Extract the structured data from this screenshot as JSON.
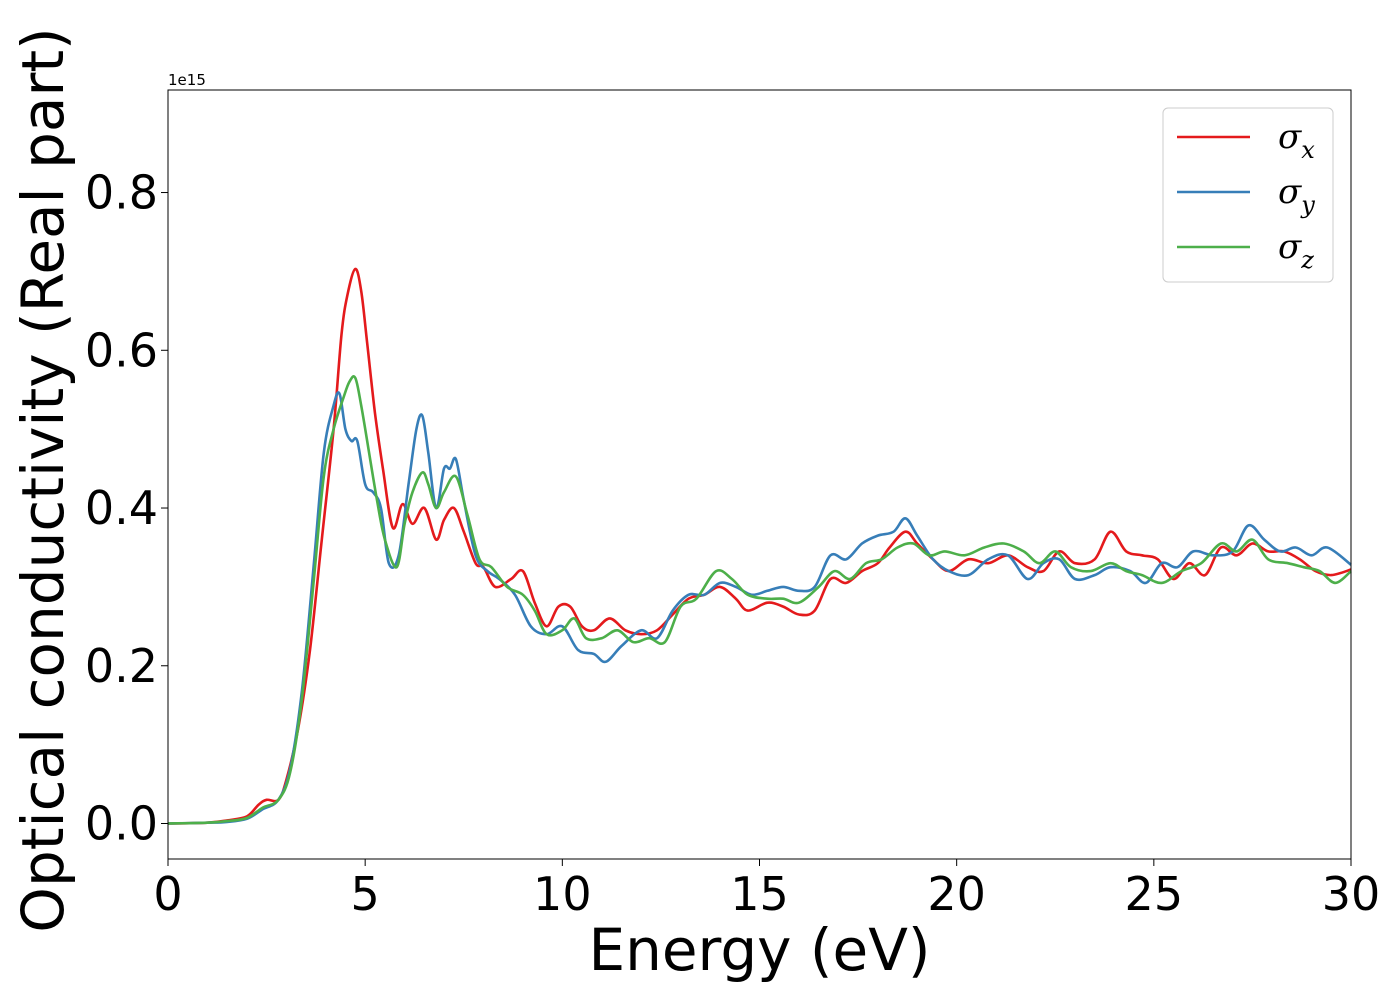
{
  "chart_data": {
    "type": "line",
    "xlabel": "Energy (eV)",
    "ylabel": "Optical conductivity (Real part)",
    "y_offset_text": "1e15",
    "xlim": [
      0,
      30
    ],
    "ylim": [
      -0.045,
      0.93
    ],
    "x_ticks": [
      "0",
      "5",
      "10",
      "15",
      "20",
      "25",
      "30"
    ],
    "y_ticks": [
      "0.0",
      "0.2",
      "0.4",
      "0.6",
      "0.8"
    ],
    "grid": false,
    "legend_position": "top-right",
    "series": [
      {
        "name": "σx",
        "legend_main": "σ",
        "legend_sub": "x",
        "color": "#e41a1c",
        "points": [
          [
            0,
            0
          ],
          [
            1,
            0.001
          ],
          [
            1.5,
            0.004
          ],
          [
            2,
            0.009
          ],
          [
            2.3,
            0.024
          ],
          [
            2.5,
            0.03
          ],
          [
            2.8,
            0.03
          ],
          [
            3,
            0.055
          ],
          [
            3.3,
            0.12
          ],
          [
            3.6,
            0.22
          ],
          [
            3.9,
            0.36
          ],
          [
            4.2,
            0.5
          ],
          [
            4.4,
            0.62
          ],
          [
            4.55,
            0.67
          ],
          [
            4.75,
            0.703
          ],
          [
            4.9,
            0.675
          ],
          [
            5.05,
            0.61
          ],
          [
            5.25,
            0.52
          ],
          [
            5.45,
            0.45
          ],
          [
            5.7,
            0.375
          ],
          [
            5.95,
            0.405
          ],
          [
            6.2,
            0.38
          ],
          [
            6.5,
            0.4
          ],
          [
            6.8,
            0.36
          ],
          [
            7.0,
            0.385
          ],
          [
            7.25,
            0.4
          ],
          [
            7.5,
            0.37
          ],
          [
            7.8,
            0.33
          ],
          [
            8.0,
            0.325
          ],
          [
            8.3,
            0.3
          ],
          [
            8.7,
            0.31
          ],
          [
            9.0,
            0.32
          ],
          [
            9.3,
            0.28
          ],
          [
            9.6,
            0.25
          ],
          [
            9.9,
            0.275
          ],
          [
            10.2,
            0.275
          ],
          [
            10.5,
            0.25
          ],
          [
            10.8,
            0.245
          ],
          [
            11.2,
            0.26
          ],
          [
            11.6,
            0.245
          ],
          [
            12,
            0.24
          ],
          [
            12.4,
            0.245
          ],
          [
            12.8,
            0.265
          ],
          [
            13.2,
            0.285
          ],
          [
            13.6,
            0.29
          ],
          [
            14,
            0.3
          ],
          [
            14.4,
            0.285
          ],
          [
            14.7,
            0.27
          ],
          [
            15.2,
            0.28
          ],
          [
            15.6,
            0.275
          ],
          [
            16,
            0.265
          ],
          [
            16.4,
            0.27
          ],
          [
            16.8,
            0.31
          ],
          [
            17.2,
            0.305
          ],
          [
            17.6,
            0.32
          ],
          [
            18,
            0.33
          ],
          [
            18.3,
            0.35
          ],
          [
            18.7,
            0.37
          ],
          [
            19,
            0.355
          ],
          [
            19.4,
            0.335
          ],
          [
            19.8,
            0.32
          ],
          [
            20.3,
            0.335
          ],
          [
            20.8,
            0.33
          ],
          [
            21.3,
            0.34
          ],
          [
            21.8,
            0.325
          ],
          [
            22.2,
            0.32
          ],
          [
            22.6,
            0.345
          ],
          [
            23,
            0.33
          ],
          [
            23.5,
            0.335
          ],
          [
            23.9,
            0.37
          ],
          [
            24.3,
            0.345
          ],
          [
            24.7,
            0.34
          ],
          [
            25.1,
            0.335
          ],
          [
            25.5,
            0.31
          ],
          [
            25.9,
            0.33
          ],
          [
            26.3,
            0.315
          ],
          [
            26.7,
            0.35
          ],
          [
            27.1,
            0.34
          ],
          [
            27.5,
            0.355
          ],
          [
            27.9,
            0.345
          ],
          [
            28.3,
            0.345
          ],
          [
            28.7,
            0.335
          ],
          [
            29.1,
            0.32
          ],
          [
            29.5,
            0.315
          ],
          [
            30,
            0.322
          ]
        ]
      },
      {
        "name": "σy",
        "legend_main": "σ",
        "legend_sub": "y",
        "color": "#377eb8",
        "points": [
          [
            0,
            0
          ],
          [
            1,
            0.001
          ],
          [
            1.5,
            0.002
          ],
          [
            2,
            0.006
          ],
          [
            2.4,
            0.018
          ],
          [
            2.8,
            0.03
          ],
          [
            3.1,
            0.07
          ],
          [
            3.4,
            0.17
          ],
          [
            3.7,
            0.33
          ],
          [
            3.95,
            0.47
          ],
          [
            4.2,
            0.53
          ],
          [
            4.35,
            0.545
          ],
          [
            4.5,
            0.5
          ],
          [
            4.65,
            0.485
          ],
          [
            4.8,
            0.485
          ],
          [
            5.0,
            0.43
          ],
          [
            5.2,
            0.42
          ],
          [
            5.4,
            0.4
          ],
          [
            5.6,
            0.33
          ],
          [
            5.85,
            0.34
          ],
          [
            6.1,
            0.43
          ],
          [
            6.3,
            0.5
          ],
          [
            6.45,
            0.517
          ],
          [
            6.6,
            0.47
          ],
          [
            6.8,
            0.4
          ],
          [
            7.0,
            0.45
          ],
          [
            7.15,
            0.45
          ],
          [
            7.3,
            0.462
          ],
          [
            7.5,
            0.41
          ],
          [
            7.8,
            0.34
          ],
          [
            8.1,
            0.32
          ],
          [
            8.4,
            0.31
          ],
          [
            8.8,
            0.29
          ],
          [
            9.2,
            0.25
          ],
          [
            9.6,
            0.24
          ],
          [
            10,
            0.25
          ],
          [
            10.4,
            0.22
          ],
          [
            10.8,
            0.215
          ],
          [
            11.1,
            0.205
          ],
          [
            11.5,
            0.225
          ],
          [
            12,
            0.245
          ],
          [
            12.4,
            0.235
          ],
          [
            12.8,
            0.27
          ],
          [
            13.2,
            0.29
          ],
          [
            13.6,
            0.29
          ],
          [
            14,
            0.305
          ],
          [
            14.4,
            0.3
          ],
          [
            14.8,
            0.29
          ],
          [
            15.2,
            0.295
          ],
          [
            15.6,
            0.3
          ],
          [
            16,
            0.295
          ],
          [
            16.4,
            0.3
          ],
          [
            16.8,
            0.34
          ],
          [
            17.2,
            0.335
          ],
          [
            17.6,
            0.355
          ],
          [
            18,
            0.365
          ],
          [
            18.4,
            0.37
          ],
          [
            18.7,
            0.387
          ],
          [
            19,
            0.365
          ],
          [
            19.4,
            0.335
          ],
          [
            19.8,
            0.32
          ],
          [
            20.3,
            0.315
          ],
          [
            20.8,
            0.335
          ],
          [
            21.3,
            0.34
          ],
          [
            21.8,
            0.31
          ],
          [
            22.2,
            0.33
          ],
          [
            22.6,
            0.335
          ],
          [
            23,
            0.31
          ],
          [
            23.5,
            0.315
          ],
          [
            23.9,
            0.325
          ],
          [
            24.4,
            0.32
          ],
          [
            24.8,
            0.305
          ],
          [
            25.2,
            0.33
          ],
          [
            25.6,
            0.325
          ],
          [
            26,
            0.345
          ],
          [
            26.5,
            0.34
          ],
          [
            27,
            0.345
          ],
          [
            27.4,
            0.378
          ],
          [
            27.8,
            0.36
          ],
          [
            28.2,
            0.345
          ],
          [
            28.6,
            0.35
          ],
          [
            29,
            0.34
          ],
          [
            29.4,
            0.35
          ],
          [
            30,
            0.328
          ]
        ]
      },
      {
        "name": "σz",
        "legend_main": "σ",
        "legend_sub": "z",
        "color": "#4daf4a",
        "points": [
          [
            0,
            0
          ],
          [
            1,
            0.001
          ],
          [
            1.5,
            0.003
          ],
          [
            2,
            0.007
          ],
          [
            2.4,
            0.02
          ],
          [
            2.8,
            0.03
          ],
          [
            3.1,
            0.065
          ],
          [
            3.4,
            0.16
          ],
          [
            3.7,
            0.31
          ],
          [
            3.95,
            0.44
          ],
          [
            4.2,
            0.5
          ],
          [
            4.45,
            0.54
          ],
          [
            4.6,
            0.56
          ],
          [
            4.75,
            0.565
          ],
          [
            4.9,
            0.53
          ],
          [
            5.1,
            0.47
          ],
          [
            5.3,
            0.41
          ],
          [
            5.5,
            0.36
          ],
          [
            5.8,
            0.325
          ],
          [
            6.0,
            0.38
          ],
          [
            6.2,
            0.42
          ],
          [
            6.45,
            0.445
          ],
          [
            6.6,
            0.43
          ],
          [
            6.8,
            0.4
          ],
          [
            7.0,
            0.42
          ],
          [
            7.3,
            0.44
          ],
          [
            7.6,
            0.39
          ],
          [
            7.9,
            0.335
          ],
          [
            8.2,
            0.325
          ],
          [
            8.6,
            0.3
          ],
          [
            9.0,
            0.29
          ],
          [
            9.3,
            0.27
          ],
          [
            9.6,
            0.24
          ],
          [
            10,
            0.245
          ],
          [
            10.3,
            0.26
          ],
          [
            10.6,
            0.235
          ],
          [
            11,
            0.235
          ],
          [
            11.4,
            0.245
          ],
          [
            11.8,
            0.23
          ],
          [
            12.2,
            0.235
          ],
          [
            12.6,
            0.23
          ],
          [
            13,
            0.275
          ],
          [
            13.4,
            0.285
          ],
          [
            13.9,
            0.32
          ],
          [
            14.3,
            0.31
          ],
          [
            14.7,
            0.29
          ],
          [
            15.2,
            0.285
          ],
          [
            15.6,
            0.285
          ],
          [
            16,
            0.28
          ],
          [
            16.5,
            0.3
          ],
          [
            16.9,
            0.32
          ],
          [
            17.3,
            0.31
          ],
          [
            17.7,
            0.33
          ],
          [
            18.1,
            0.335
          ],
          [
            18.5,
            0.35
          ],
          [
            18.9,
            0.355
          ],
          [
            19.3,
            0.34
          ],
          [
            19.7,
            0.345
          ],
          [
            20.2,
            0.34
          ],
          [
            20.7,
            0.35
          ],
          [
            21.2,
            0.355
          ],
          [
            21.7,
            0.345
          ],
          [
            22.1,
            0.33
          ],
          [
            22.5,
            0.345
          ],
          [
            22.9,
            0.325
          ],
          [
            23.4,
            0.32
          ],
          [
            23.9,
            0.33
          ],
          [
            24.3,
            0.32
          ],
          [
            24.7,
            0.315
          ],
          [
            25.2,
            0.305
          ],
          [
            25.7,
            0.32
          ],
          [
            26.2,
            0.33
          ],
          [
            26.7,
            0.355
          ],
          [
            27.1,
            0.345
          ],
          [
            27.5,
            0.36
          ],
          [
            27.9,
            0.335
          ],
          [
            28.4,
            0.33
          ],
          [
            28.8,
            0.325
          ],
          [
            29.2,
            0.32
          ],
          [
            29.6,
            0.305
          ],
          [
            30,
            0.32
          ]
        ]
      }
    ]
  }
}
